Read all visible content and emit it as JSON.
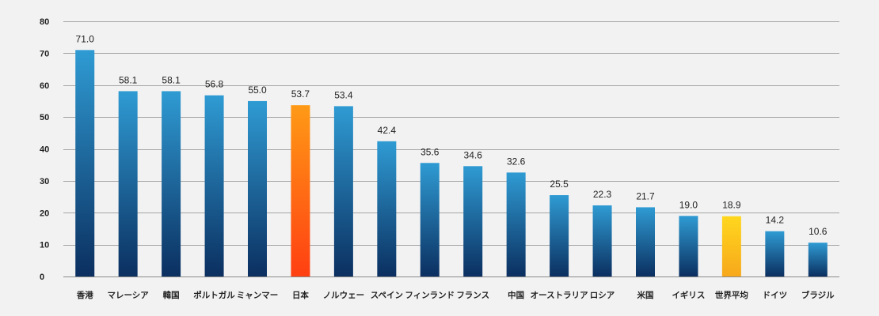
{
  "chart_data": {
    "type": "bar",
    "title": "",
    "xlabel": "",
    "ylabel": "",
    "ylim": [
      0,
      80
    ],
    "yticks": [
      0,
      10,
      20,
      30,
      40,
      50,
      60,
      70,
      80
    ],
    "grid": true,
    "categories": [
      "香港",
      "マレーシア",
      "韓国",
      "ポルトガル",
      "ミャンマー",
      "日本",
      "ノルウェー",
      "スペイン",
      "フィンランド",
      "フランス",
      "中国",
      "オーストラリア",
      "ロシア",
      "米国",
      "イギリス",
      "世界平均",
      "ドイツ",
      "ブラジル"
    ],
    "values": [
      71.0,
      58.1,
      58.1,
      56.8,
      55.0,
      53.7,
      53.4,
      42.4,
      35.6,
      34.6,
      32.6,
      25.5,
      22.3,
      21.7,
      19.0,
      18.9,
      14.2,
      10.6
    ],
    "value_labels": [
      "71.0",
      "58.1",
      "58.1",
      "56.8",
      "55.0",
      "53.7",
      "53.4",
      "42.4",
      "35.6",
      "34.6",
      "32.6",
      "25.5",
      "22.3",
      "21.7",
      "19.0",
      "18.9",
      "14.2",
      "10.6"
    ],
    "highlight": {
      "日本": "orange-red",
      "世界平均": "yellow-orange"
    }
  },
  "colors": {
    "background": "#f2f2f2",
    "grid": "#8a8a8a",
    "bar_top": "#2f9bd3",
    "bar_bottom": "#0b2f60",
    "japan_top": "#ff9a16",
    "japan_bottom": "#ff3f12",
    "world_top": "#ffd71e",
    "world_bottom": "#f7a81b"
  }
}
